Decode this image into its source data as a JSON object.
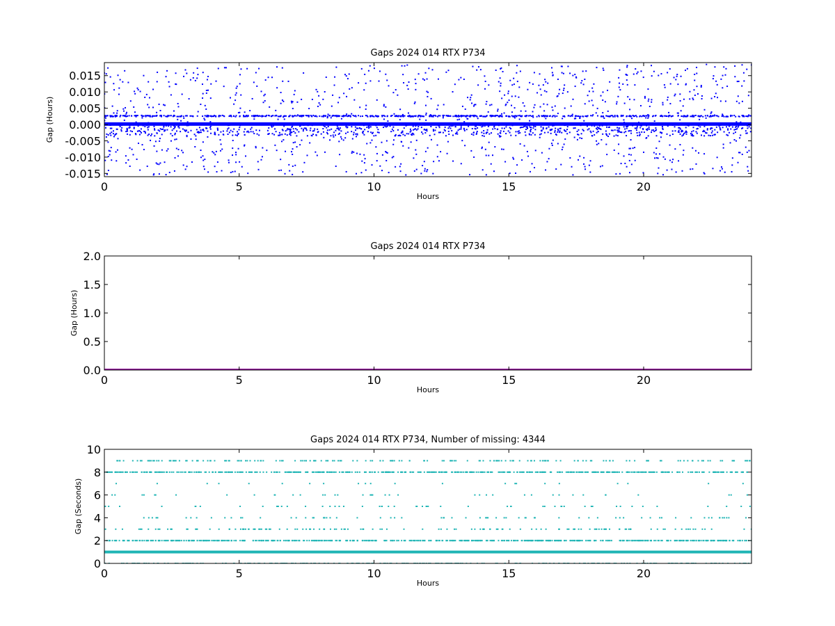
{
  "chart_data": [
    {
      "type": "scatter",
      "title": "Gaps 2024 014 RTX  P734",
      "xlabel": "Hours",
      "ylabel": "Gap (Hours)",
      "xlim": [
        0,
        24
      ],
      "ylim": [
        -0.016,
        0.019
      ],
      "xticks": [
        "0",
        "5",
        "10",
        "15",
        "20"
      ],
      "xtick_values": [
        0,
        5,
        10,
        15,
        20
      ],
      "yticks": [
        "-0.015",
        "-0.010",
        "-0.005",
        "0.000",
        "0.005",
        "0.010",
        "0.015"
      ],
      "ytick_values": [
        -0.015,
        -0.01,
        -0.005,
        0.0,
        0.005,
        0.01,
        0.015
      ],
      "grid": false,
      "color": "#0000ff",
      "series": [
        {
          "values_band": [
            0.0,
            0.0003
          ],
          "density": "continuous"
        },
        {
          "values_band": [
            0.0024,
            0.0027
          ],
          "density": "dense"
        },
        {
          "values_band": [
            -0.0155,
            0.0185
          ],
          "density": "sparse scatter"
        }
      ]
    },
    {
      "type": "line",
      "title": "Gaps 2024 014 RTX  P734",
      "xlabel": "Hours",
      "ylabel": "Gap (Hours)",
      "xlim": [
        0,
        24
      ],
      "ylim": [
        0,
        2.0
      ],
      "xticks": [
        "0",
        "5",
        "10",
        "15",
        "20"
      ],
      "xtick_values": [
        0,
        5,
        10,
        15,
        20
      ],
      "yticks": [
        "0.0",
        "0.5",
        "1.0",
        "1.5",
        "2.0"
      ],
      "ytick_values": [
        0.0,
        0.5,
        1.0,
        1.5,
        2.0
      ],
      "grid": false,
      "color": "#9b1fa5",
      "series": [
        {
          "x": [
            0,
            24
          ],
          "values": [
            0.0,
            0.0
          ]
        }
      ]
    },
    {
      "type": "scatter",
      "title": "Gaps 2024 014 RTX  P734, Number of missing: 4344",
      "xlabel": "Hours",
      "ylabel": "Gap (Seconds)",
      "xlim": [
        0,
        24
      ],
      "ylim": [
        0,
        10
      ],
      "xticks": [
        "0",
        "5",
        "10",
        "15",
        "20"
      ],
      "xtick_values": [
        0,
        5,
        10,
        15,
        20
      ],
      "yticks": [
        "0",
        "2",
        "4",
        "6",
        "8",
        "10"
      ],
      "ytick_values": [
        0,
        2,
        4,
        6,
        8,
        10
      ],
      "grid": false,
      "color": "#1fb5b5",
      "series": [
        {
          "level": 1,
          "density": "continuous"
        },
        {
          "level": 2,
          "density": "dense"
        },
        {
          "level": 8,
          "density": "dense"
        },
        {
          "level": 0,
          "density": "medium"
        },
        {
          "level": 3,
          "density": "medium"
        },
        {
          "level": 9,
          "density": "medium"
        },
        {
          "level": 4,
          "density": "sparse"
        },
        {
          "level": 5,
          "density": "sparse"
        },
        {
          "level": 6,
          "density": "sparse"
        },
        {
          "level": 7,
          "density": "sparse"
        }
      ]
    }
  ]
}
